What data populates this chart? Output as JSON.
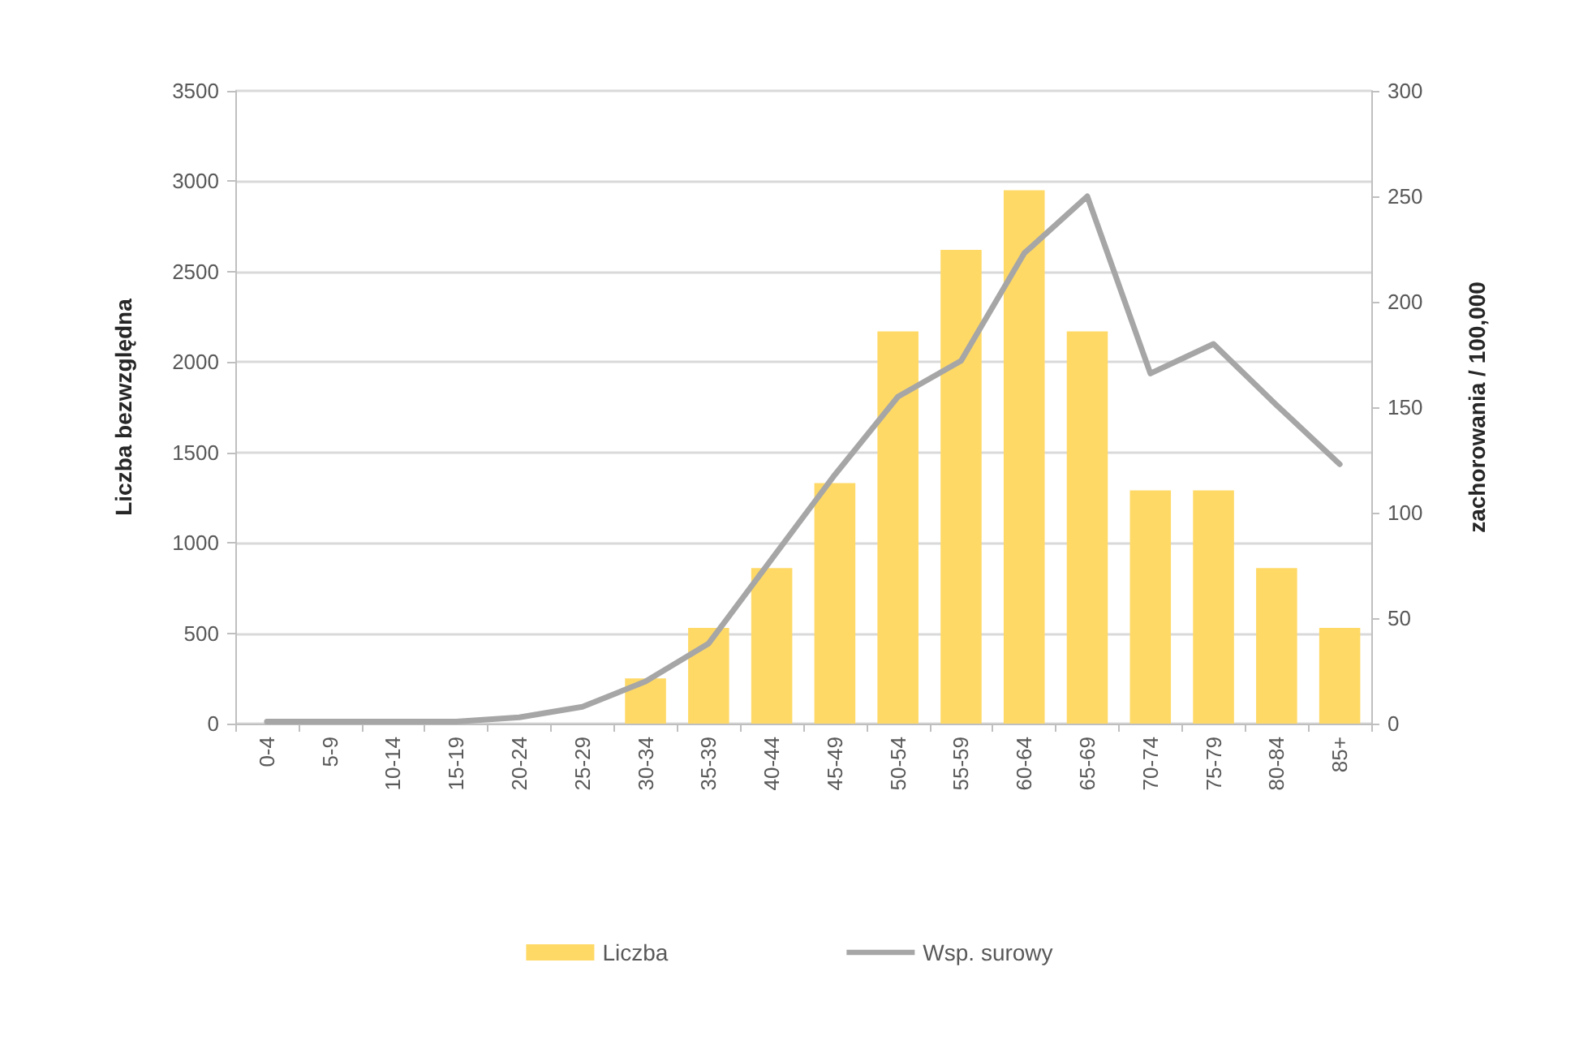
{
  "chart_data": {
    "type": "bar",
    "categories": [
      "0-4",
      "5-9",
      "10-14",
      "15-19",
      "20-24",
      "25-29",
      "30-34",
      "35-39",
      "40-44",
      "45-49",
      "50-54",
      "55-59",
      "60-64",
      "65-69",
      "70-74",
      "75-79",
      "80-84",
      "85+"
    ],
    "series": [
      {
        "name": "Liczba",
        "color": "#ffd966",
        "values": [
          0,
          0,
          0,
          0,
          0,
          0,
          250,
          530,
          860,
          1330,
          2170,
          2620,
          2950,
          2170,
          1290,
          1290,
          860,
          530
        ]
      },
      {
        "name": "Wsp. surowy",
        "type": "line",
        "axis": "y2",
        "color": "#a6a6a6",
        "values": [
          1,
          1,
          1,
          1,
          3,
          8,
          20,
          38,
          78,
          118,
          155,
          172,
          223,
          250,
          166,
          180,
          151,
          123
        ]
      }
    ],
    "ylabel": "Liczba bezwzględna",
    "y2label": "zachorowania / 100,000",
    "ylim": [
      0,
      3500
    ],
    "yticks": [
      0,
      500,
      1000,
      1500,
      2000,
      2500,
      3000,
      3500
    ],
    "y2lim": [
      0,
      300
    ],
    "y2ticks": [
      0,
      50,
      100,
      150,
      200,
      250,
      300
    ],
    "grid": "y",
    "legend": "bottom"
  }
}
